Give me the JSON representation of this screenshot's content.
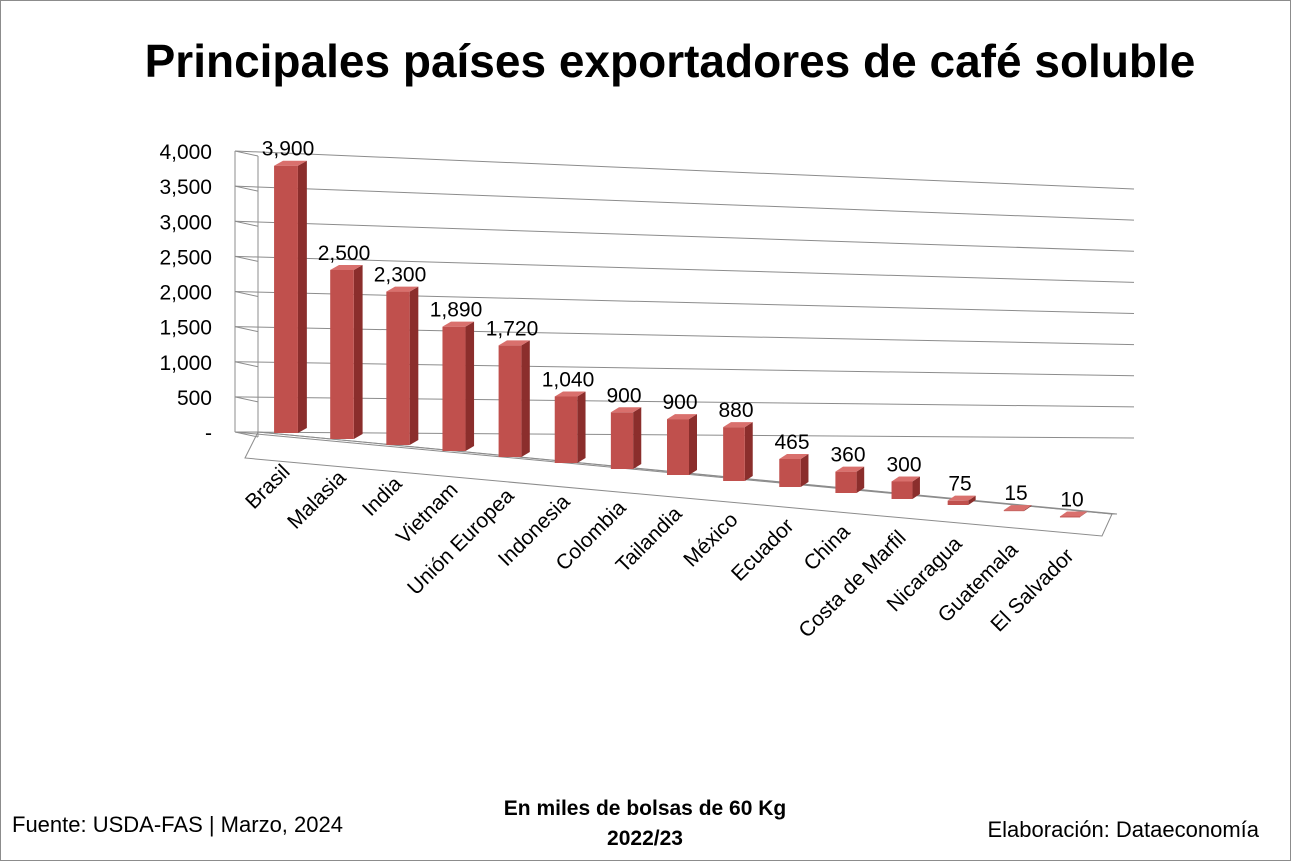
{
  "chart_data": {
    "type": "bar",
    "title": "Principales países exportadores de café soluble",
    "categories": [
      "Brasil",
      "Malasia",
      "India",
      "Vietnam",
      "Unión Europea",
      "Indonesia",
      "Colombia",
      "Tailandia",
      "México",
      "Ecuador",
      "China",
      "Costa de Marfil",
      "Nicaragua",
      "Guatemala",
      "El Salvador"
    ],
    "values": [
      3900,
      2500,
      2300,
      1890,
      1720,
      1040,
      900,
      900,
      880,
      465,
      360,
      300,
      75,
      15,
      10
    ],
    "data_labels": [
      "3,900",
      "2,500",
      "2,300",
      "1,890",
      "1,720",
      "1,040",
      "900",
      "900",
      "880",
      "465",
      "360",
      "300",
      "75",
      "15",
      "10"
    ],
    "y_ticks": [
      "-",
      "500",
      "1,000",
      "1,500",
      "2,000",
      "2,500",
      "3,000",
      "3,500",
      "4,000"
    ],
    "ylim": [
      0,
      4000
    ],
    "grid": true,
    "style": "3d-perspective",
    "bar_color": "#c0504d",
    "bar_side_color": "#8b2e2c",
    "bar_top_color": "#d9706d"
  },
  "footer": {
    "source": "Fuente: USDA-FAS | Marzo, 2024",
    "units_line1": "En miles de bolsas de 60 Kg",
    "units_line2": "2022/23",
    "credit": "Elaboración: Dataeconomía"
  }
}
